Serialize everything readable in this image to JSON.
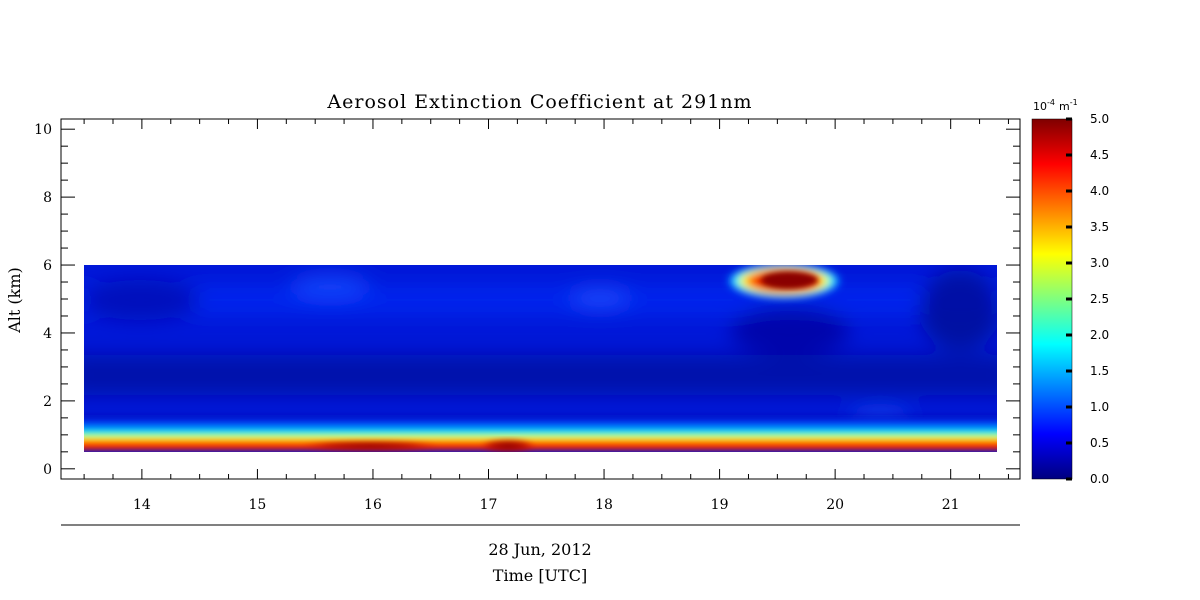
{
  "chart_data": {
    "type": "heatmap",
    "title": "Aerosol Extinction Coefficient at 291nm",
    "ylabel": "Alt (km)",
    "xlabel_date": "28 Jun, 2012",
    "xlabel": "Time [UTC]",
    "x_ticks": [
      "14",
      "15",
      "16",
      "17",
      "18",
      "19",
      "20",
      "21"
    ],
    "y_ticks": [
      "0",
      "2",
      "4",
      "6",
      "8",
      "10"
    ],
    "xlim": [
      13.3,
      21.6
    ],
    "ylim": [
      -0.3,
      10.3
    ],
    "data_x_range": [
      13.5,
      21.4
    ],
    "data_y_range": [
      0.55,
      6.0
    ],
    "colorbar": {
      "unit_base": "10",
      "unit_exp": "-4",
      "unit_m": "m",
      "unit_m_exp": "-1",
      "range": [
        0.0,
        5.0
      ],
      "ticks": [
        "5.0",
        "4.5",
        "4.0",
        "3.5",
        "3.0",
        "2.5",
        "2.0",
        "1.5",
        "1.0",
        "0.5",
        "0.0"
      ],
      "colormap": [
        "#00007f",
        "#0000ff",
        "#007fff",
        "#00ffff",
        "#7fff7f",
        "#ffff00",
        "#ff7f00",
        "#ff0000",
        "#7f0000"
      ]
    },
    "features": [
      {
        "feature": "boundary layer aerosol",
        "time_range": [
          13.5,
          21.4
        ],
        "altitude_km": 0.7,
        "value": 4.3
      },
      {
        "feature": "boundary layer maximum",
        "time_range": [
          15.5,
          16.5
        ],
        "altitude_km": 0.65,
        "value": 4.9
      },
      {
        "feature": "boundary layer maximum",
        "time_range": [
          16.9,
          17.4
        ],
        "altitude_km": 0.65,
        "value": 5.0
      },
      {
        "feature": "elevated aerosol plume",
        "time_range": [
          19.1,
          19.95
        ],
        "altitude_km": 5.6,
        "value": 5.0
      },
      {
        "feature": "background",
        "time_range": [
          13.5,
          21.4
        ],
        "altitude_range_km": [
          1.5,
          6.0
        ],
        "value": 0.4
      }
    ]
  }
}
